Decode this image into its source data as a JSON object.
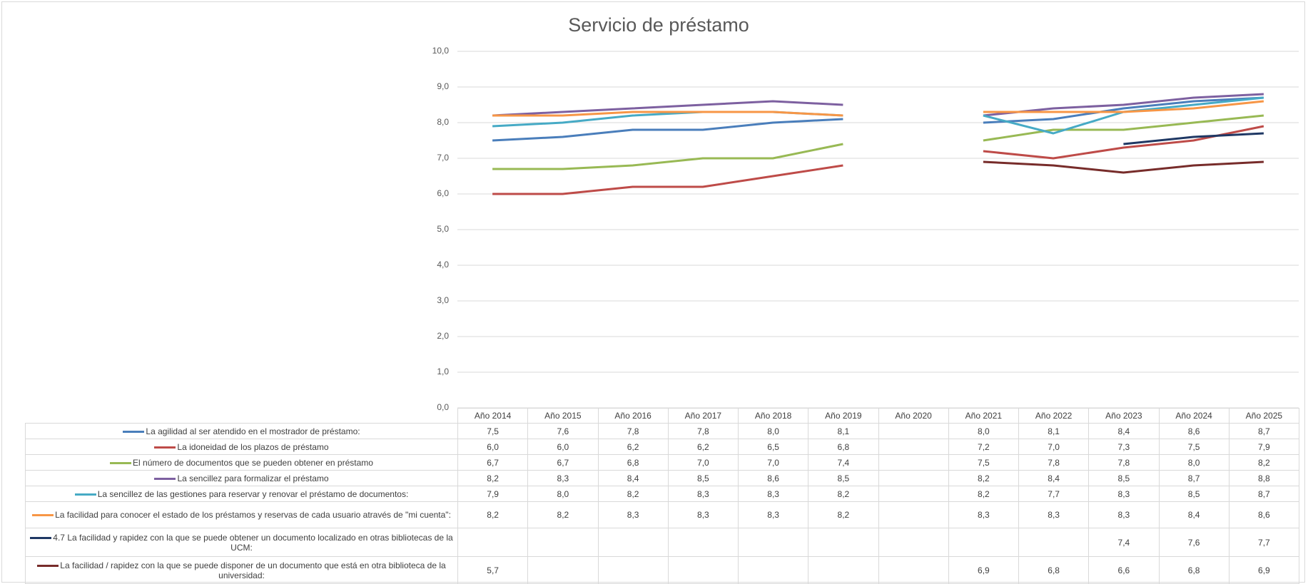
{
  "chart_data": {
    "type": "line",
    "title": "Servicio de préstamo",
    "categories": [
      "Año 2014",
      "Año 2015",
      "Año 2016",
      "Año 2017",
      "Año 2018",
      "Año 2019",
      "Año 2020",
      "Año 2021",
      "Año 2022",
      "Año 2023",
      "Año 2024",
      "Año 2025"
    ],
    "ylim": [
      0,
      10
    ],
    "yticks": [
      {
        "value": 0,
        "label": "0,0"
      },
      {
        "value": 1,
        "label": "1,0"
      },
      {
        "value": 2,
        "label": "2,0"
      },
      {
        "value": 3,
        "label": "3,0"
      },
      {
        "value": 4,
        "label": "4,0"
      },
      {
        "value": 5,
        "label": "5,0"
      },
      {
        "value": 6,
        "label": "6,0"
      },
      {
        "value": 7,
        "label": "7,0"
      },
      {
        "value": 8,
        "label": "8,0"
      },
      {
        "value": 9,
        "label": "9,0"
      },
      {
        "value": 10,
        "label": "10,0"
      }
    ],
    "grid": true,
    "series": [
      {
        "name": "La agilidad al ser atendido en el mostrador de préstamo:",
        "color": "#4a7ebb",
        "values": [
          7.5,
          7.6,
          7.8,
          7.8,
          8.0,
          8.1,
          null,
          8.0,
          8.1,
          8.4,
          8.6,
          8.7
        ],
        "value_labels": [
          "7,5",
          "7,6",
          "7,8",
          "7,8",
          "8,0",
          "8,1",
          null,
          "8,0",
          "8,1",
          "8,4",
          "8,6",
          "8,7"
        ]
      },
      {
        "name": "La idoneidad de los plazos de préstamo",
        "color": "#be4b48",
        "values": [
          6.0,
          6.0,
          6.2,
          6.2,
          6.5,
          6.8,
          null,
          7.2,
          7.0,
          7.3,
          7.5,
          7.9
        ],
        "value_labels": [
          "6,0",
          "6,0",
          "6,2",
          "6,2",
          "6,5",
          "6,8",
          null,
          "7,2",
          "7,0",
          "7,3",
          "7,5",
          "7,9"
        ]
      },
      {
        "name": "El número de documentos que se pueden obtener en préstamo",
        "color": "#98b954",
        "values": [
          6.7,
          6.7,
          6.8,
          7.0,
          7.0,
          7.4,
          null,
          7.5,
          7.8,
          7.8,
          8.0,
          8.2
        ],
        "value_labels": [
          "6,7",
          "6,7",
          "6,8",
          "7,0",
          "7,0",
          "7,4",
          null,
          "7,5",
          "7,8",
          "7,8",
          "8,0",
          "8,2"
        ]
      },
      {
        "name": "La sencillez para formalizar el préstamo",
        "color": "#7d60a0",
        "values": [
          8.2,
          8.3,
          8.4,
          8.5,
          8.6,
          8.5,
          null,
          8.2,
          8.4,
          8.5,
          8.7,
          8.8
        ],
        "value_labels": [
          "8,2",
          "8,3",
          "8,4",
          "8,5",
          "8,6",
          "8,5",
          null,
          "8,2",
          "8,4",
          "8,5",
          "8,7",
          "8,8"
        ]
      },
      {
        "name": "La sencillez de las gestiones para reservar y renovar el préstamo de documentos:",
        "color": "#46aac5",
        "values": [
          7.9,
          8.0,
          8.2,
          8.3,
          8.3,
          8.2,
          null,
          8.2,
          7.7,
          8.3,
          8.5,
          8.7
        ],
        "value_labels": [
          "7,9",
          "8,0",
          "8,2",
          "8,3",
          "8,3",
          "8,2",
          null,
          "8,2",
          "7,7",
          "8,3",
          "8,5",
          "8,7"
        ]
      },
      {
        "name": "La facilidad para conocer el estado de los préstamos y reservas de cada usuario através de \"mi cuenta\":",
        "color": "#f79646",
        "values": [
          8.2,
          8.2,
          8.3,
          8.3,
          8.3,
          8.2,
          null,
          8.3,
          8.3,
          8.3,
          8.4,
          8.6
        ],
        "value_labels": [
          "8,2",
          "8,2",
          "8,3",
          "8,3",
          "8,3",
          "8,2",
          null,
          "8,3",
          "8,3",
          "8,3",
          "8,4",
          "8,6"
        ]
      },
      {
        "name": "4.7 La facilidad y rapidez con la que se puede obtener un documento localizado en otras  bibliotecas de la UCM:",
        "color": "#1f3864",
        "values": [
          null,
          null,
          null,
          null,
          null,
          null,
          null,
          null,
          null,
          7.4,
          7.6,
          7.7
        ],
        "value_labels": [
          null,
          null,
          null,
          null,
          null,
          null,
          null,
          null,
          null,
          "7,4",
          "7,6",
          "7,7"
        ]
      },
      {
        "name": "La facilidad / rapidez con la que se puede disponer de un documento que está en otra biblioteca de la universidad:",
        "color": "#772c2a",
        "values": [
          5.7,
          null,
          null,
          null,
          null,
          null,
          null,
          6.9,
          6.8,
          6.6,
          6.8,
          6.9
        ],
        "value_labels": [
          "5,7",
          null,
          null,
          null,
          null,
          null,
          null,
          "6,9",
          "6,8",
          "6,6",
          "6,8",
          "6,9"
        ]
      }
    ]
  }
}
